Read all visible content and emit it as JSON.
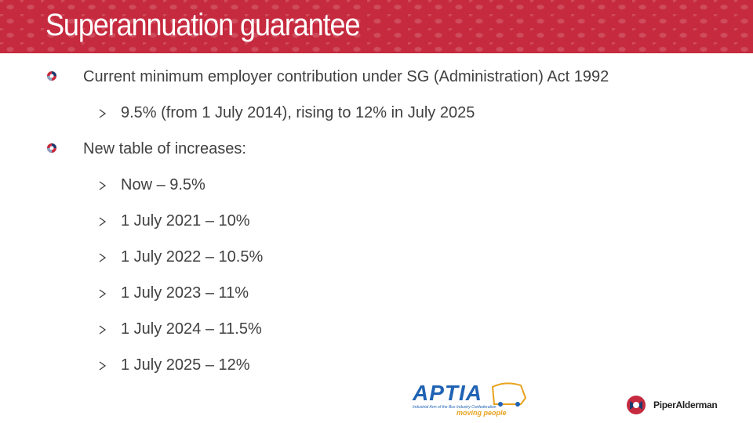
{
  "title": "Superannuation guarantee",
  "bullets": [
    {
      "text": "Current minimum employer contribution under SG (Administration) Act 1992",
      "subitems": [
        "9.5% (from 1 July 2014), rising to 12% in July 2025"
      ]
    },
    {
      "text": "New table of increases:",
      "subitems": [
        "Now – 9.5%",
        "1 July 2021 – 10%",
        "1 July 2022 – 10.5%",
        "1 July 2023 – 11%",
        "1 July 2024 – 11.5%",
        "1 July 2025 – 12%"
      ]
    }
  ],
  "logos": {
    "aptia": {
      "name": "APTIA",
      "tagline": "Industrial Arm of the Bus Industry Confederation",
      "slogan": "moving people"
    },
    "piper_alderman": "PiperAlderman"
  }
}
